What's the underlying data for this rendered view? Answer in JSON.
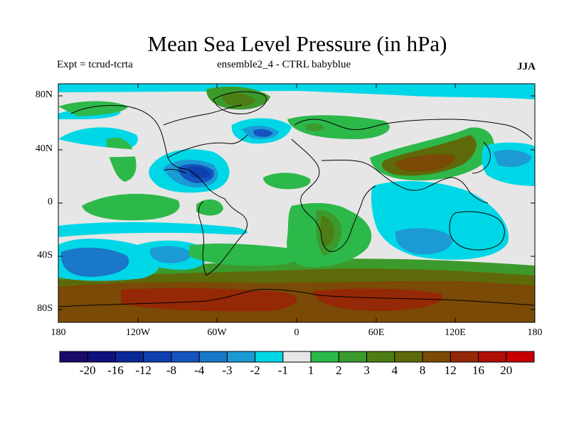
{
  "title": "Mean Sea Level Pressure (in hPa)",
  "subtitle_left": "Expt = tcrud-tcrta",
  "subtitle_center": "ensemble2_4 - CTRL babyblue",
  "season": "JJA",
  "lat_labels": [
    "80N",
    "40N",
    "0",
    "40S",
    "80S"
  ],
  "lon_labels": [
    "180",
    "120W",
    "60W",
    "0",
    "60E",
    "120E",
    "180"
  ],
  "colorbar": {
    "labels": [
      "-20",
      "-16",
      "-12",
      "-8",
      "-4",
      "-3",
      "-2",
      "-1",
      "1",
      "2",
      "3",
      "4",
      "8",
      "12",
      "16",
      "20"
    ],
    "colors": [
      "#1a0a6b",
      "#10107f",
      "#0a2898",
      "#0d3fae",
      "#1454bf",
      "#1a78c8",
      "#1b9ad4",
      "#00d7e6",
      "#e6e6e6",
      "#2db84a",
      "#3c9a2c",
      "#4d7d14",
      "#5e6a0a",
      "#7a4a06",
      "#952806",
      "#ad0e06",
      "#c80000"
    ]
  },
  "colors": {
    "background_field": "#e6e6e6",
    "coastline": "#000000"
  }
}
